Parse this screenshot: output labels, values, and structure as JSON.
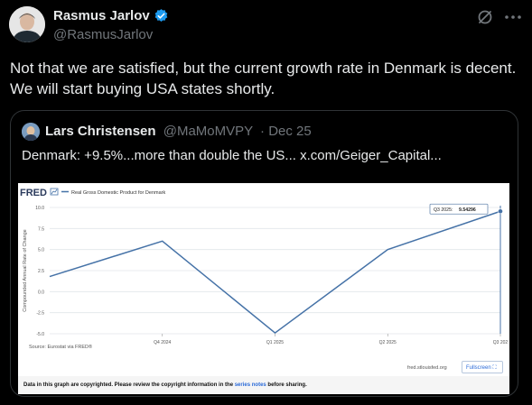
{
  "tweet": {
    "display_name": "Rasmus Jarlov",
    "handle": "@RasmusJarlov",
    "text": "Not that we are satisfied, but the current growth rate in Denmark is decent. We will start buying USA states shortly."
  },
  "quote": {
    "display_name": "Lars Christensen",
    "handle": "@MaMoMVPY",
    "date": "· Dec 25",
    "text": "Denmark: +9.5%...more than double the US...  x.com/Geiger_Capital..."
  },
  "fred": {
    "logo": "FRED",
    "fullscreen_label": "Fullscreen",
    "source": "Source: Eurostat via FRED®",
    "site": "fred.stlouisfed.org",
    "footer_prefix": "Data in this graph are copyrighted. Please review the copyright information in the",
    "footer_link": "series notes",
    "footer_suffix": "before sharing."
  },
  "colors": {
    "verified": "#1d9bf0",
    "line": "#4572a7"
  },
  "chart_data": {
    "type": "line",
    "title": "",
    "legend": "Real Gross Domestic Product for Denmark",
    "ylabel": "Compounded Annual Rate of Change",
    "xlabel": "",
    "ylim": [
      -5.0,
      10.0
    ],
    "y_ticks": [
      "10.0",
      "7.5",
      "5.0",
      "2.5",
      "0.0",
      "-2.5",
      "-5.0"
    ],
    "x_tick_labels": [
      "Q4 2024",
      "Q1 2025",
      "Q2 2025",
      "Q3 202"
    ],
    "x": [
      "Q3 2024",
      "Q4 2024",
      "Q1 2025",
      "Q2 2025",
      "Q3 2025"
    ],
    "values": [
      1.8,
      6.0,
      -4.9,
      5.0,
      9.54296
    ],
    "tooltip": {
      "label": "Q3 2025:",
      "value": "9.54296"
    },
    "grid": true
  }
}
